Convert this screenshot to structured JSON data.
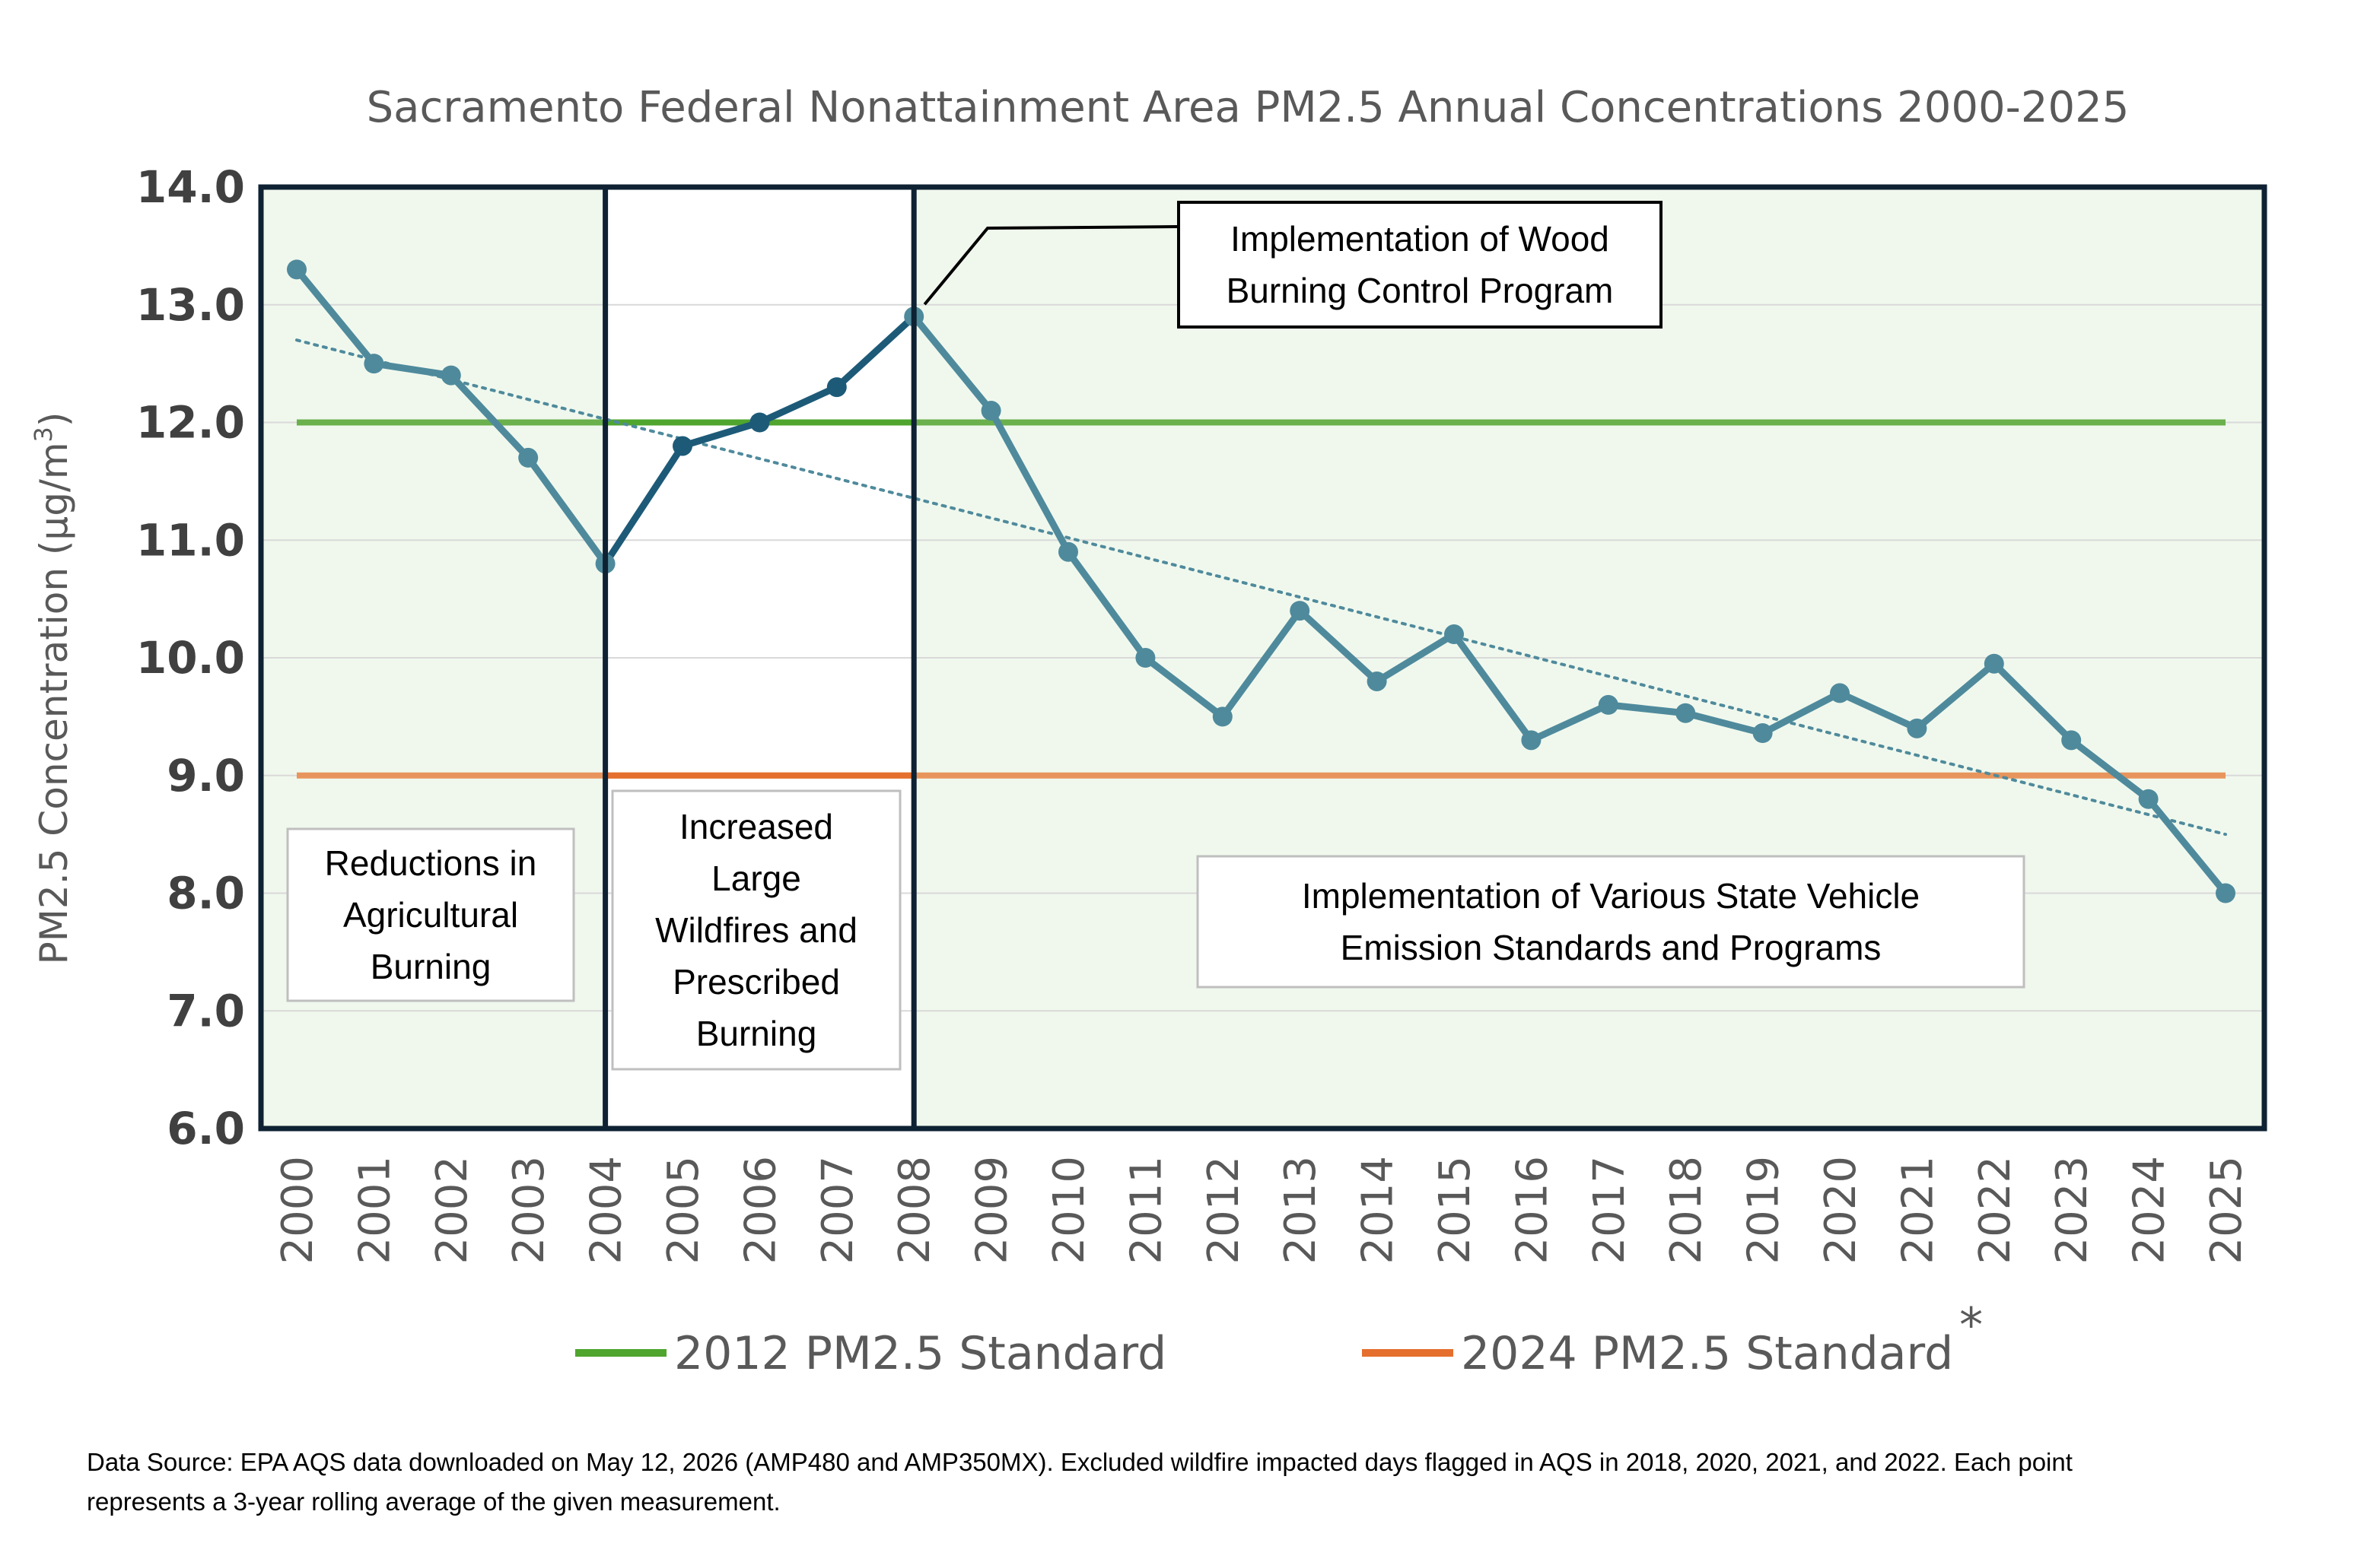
{
  "chart_data": {
    "type": "line",
    "title": "Sacramento Federal Nonattainment Area PM2.5 Annual Concentrations 2000-2025",
    "ylabel_prefix": "PM2.5 Concentration (µg/m",
    "ylabel_sup": "3",
    "ylabel_suffix": ")",
    "xlabel": "",
    "ylim": [
      6.0,
      14.0
    ],
    "yticks": [
      "6.0",
      "7.0",
      "8.0",
      "9.0",
      "10.0",
      "11.0",
      "12.0",
      "13.0",
      "14.0"
    ],
    "x": [
      "2000",
      "2001",
      "2002",
      "2003",
      "2004",
      "2005",
      "2006",
      "2007",
      "2008",
      "2009",
      "2010",
      "2011",
      "2012",
      "2013",
      "2014",
      "2015",
      "2016",
      "2017",
      "2018",
      "2019",
      "2020",
      "2021",
      "2022",
      "2023",
      "2024",
      "2025"
    ],
    "series": [
      {
        "values": [
          13.3,
          12.5,
          12.4,
          11.7,
          10.8,
          11.8,
          12.0,
          12.3,
          12.9,
          12.1,
          10.9,
          10.0,
          9.5,
          10.4,
          9.8,
          10.2,
          9.3,
          9.6,
          9.53,
          9.36,
          9.7,
          9.4,
          9.95,
          9.3,
          8.8,
          8.0
        ],
        "color": "#4f8a9c",
        "highlight_color": "#1d5a78",
        "highlight_range": [
          "2004",
          "2008"
        ]
      }
    ],
    "trendline": {
      "start": 12.7,
      "end": 8.5,
      "color": "#4f8a9c",
      "style": "dotted"
    },
    "standards": [
      {
        "name": "2012 PM2.5 Standard",
        "value": 12.0,
        "color": "#6ab04c",
        "highlight_color": "#4fa52e"
      },
      {
        "name": "2024 PM2.5 Standard",
        "value": 9.0,
        "color": "#e8955d",
        "highlight_color": "#e56f2e",
        "marker": "*"
      }
    ],
    "background": {
      "shaded_color": "#f0f8ed",
      "unshaded_range": [
        "2004",
        "2008"
      ]
    },
    "dividers": [
      "2004",
      "2008"
    ],
    "grid": true,
    "legend": {
      "placement": "bottom"
    },
    "annotations": [
      {
        "lines": [
          "Reductions in",
          "Agricultural",
          "Burning"
        ]
      },
      {
        "lines": [
          "Increased",
          "Large",
          "Wildfires and",
          "Prescribed",
          "Burning"
        ]
      },
      {
        "lines": [
          "Implementation of  Wood",
          "Burning Control Program"
        ],
        "points_to": "2008"
      },
      {
        "lines": [
          "Implementation of  Various State Vehicle",
          "Emission Standards and Programs"
        ]
      }
    ],
    "source_note": [
      "Data Source: EPA AQS data downloaded on May 12, 2026 (AMP480 and AMP350MX). Excluded wildfire impacted days flagged in AQS in 2018, 2020, 2021, and 2022. Each point",
      "represents a 3-year rolling average of the given measurement."
    ]
  }
}
